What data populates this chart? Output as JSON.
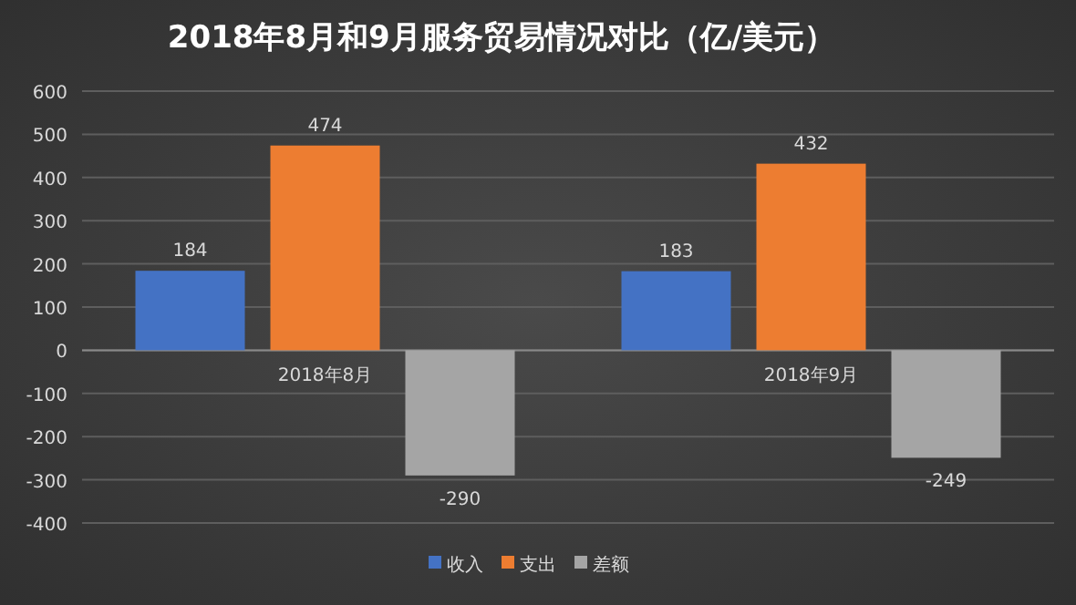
{
  "chart_data": {
    "type": "bar",
    "title": "2018年8月和9月服务贸易情况对比（亿/美元）",
    "categories": [
      "2018年8月",
      "2018年9月"
    ],
    "series": [
      {
        "name": "收入",
        "color": "#4472c4",
        "values": [
          184,
          183
        ]
      },
      {
        "name": "支出",
        "color": "#ed7d31",
        "values": [
          474,
          432
        ]
      },
      {
        "name": "差额",
        "color": "#a5a5a5",
        "values": [
          -290,
          -249
        ]
      }
    ],
    "ylim": [
      -400,
      600
    ],
    "yticks": [
      -400,
      -300,
      -200,
      -100,
      0,
      100,
      200,
      300,
      400,
      500,
      600
    ],
    "grid": "y",
    "legend": "bottom",
    "data_labels": true
  }
}
